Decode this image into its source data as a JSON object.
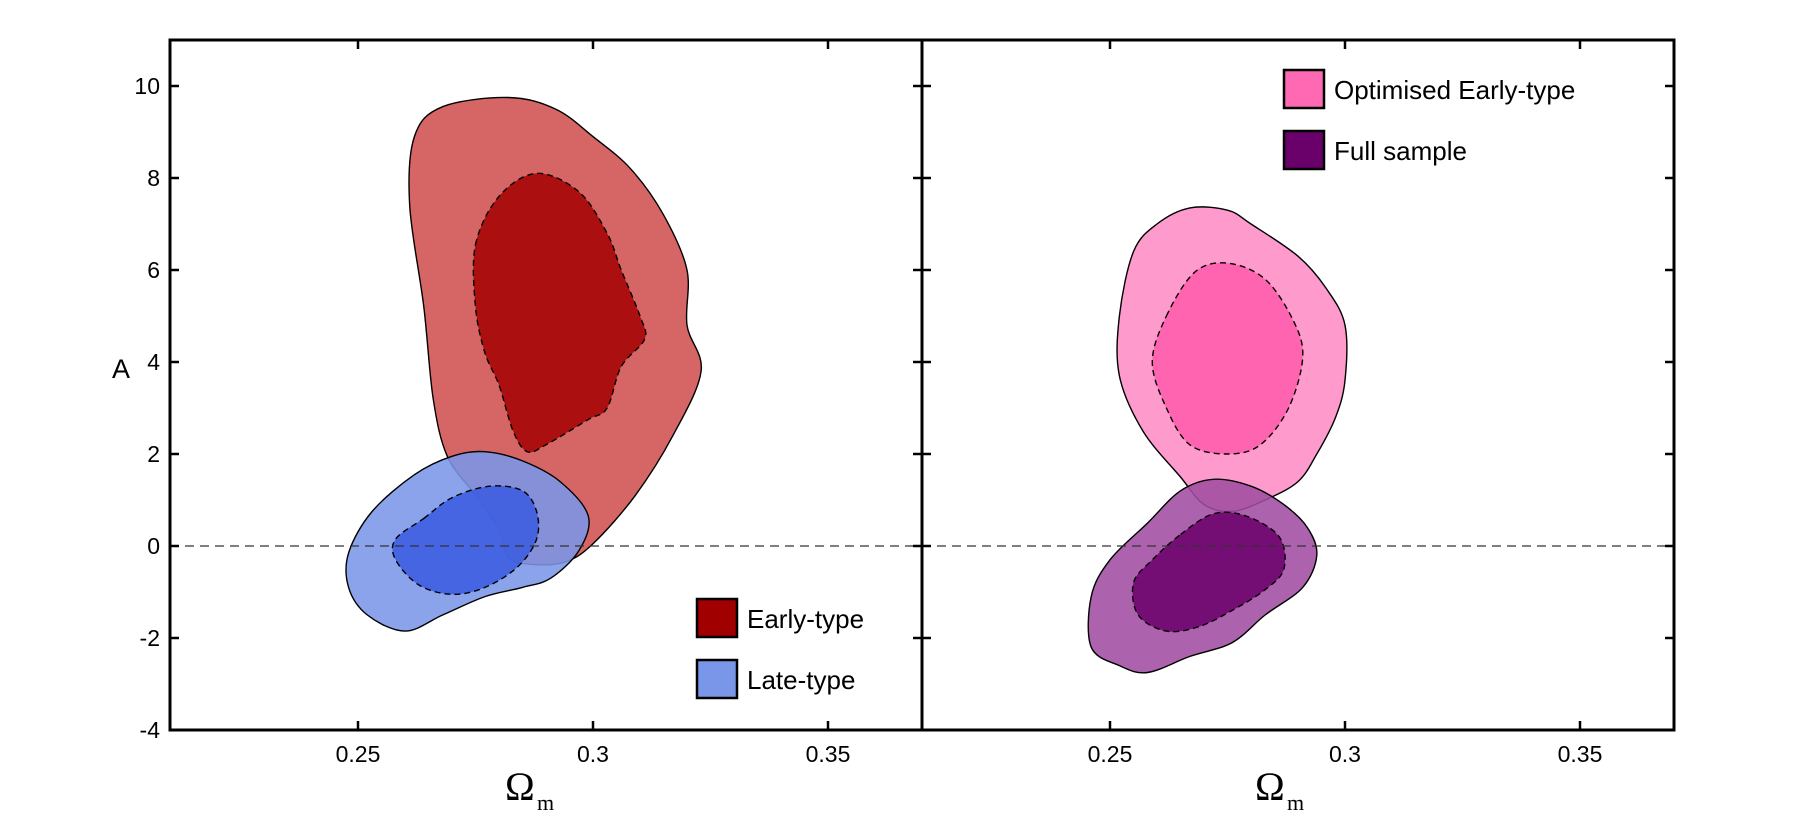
{
  "chart_data": [
    {
      "type": "contour",
      "panel": "left",
      "xlabel": "Ω",
      "xlabel_sub": "m",
      "ylabel": "A",
      "xlim": [
        0.21,
        0.37
      ],
      "ylim": [
        -4,
        11
      ],
      "xticks": [
        0.25,
        0.3,
        0.35
      ],
      "xtick_labels": [
        "0.25",
        "0.3",
        "0.35"
      ],
      "yticks": [
        -4,
        -2,
        0,
        2,
        4,
        6,
        8,
        10
      ],
      "ytick_labels": [
        "-4",
        "-2",
        "0",
        "2",
        "4",
        "6",
        "8",
        "10"
      ],
      "reference_line_y": 0,
      "legend": [
        {
          "label": "Early-type",
          "color": "#a00000"
        },
        {
          "label": "Late-type",
          "color": "#7a96e8"
        }
      ],
      "series": [
        {
          "name": "Early-type",
          "outer_color": "#d05050",
          "inner_color": "#a50000",
          "outer_contour": [
            [
              0.268,
              9.55
            ],
            [
              0.282,
              9.75
            ],
            [
              0.292,
              9.5
            ],
            [
              0.3,
              8.9
            ],
            [
              0.308,
              8.2
            ],
            [
              0.315,
              7.2
            ],
            [
              0.32,
              6.0
            ],
            [
              0.32,
              4.8
            ],
            [
              0.323,
              3.8
            ],
            [
              0.317,
              2.4
            ],
            [
              0.309,
              1.1
            ],
            [
              0.3,
              0.05
            ],
            [
              0.294,
              -0.35
            ],
            [
              0.287,
              -0.4
            ],
            [
              0.282,
              -0.25
            ],
            [
              0.28,
              0.35
            ],
            [
              0.275,
              1.1
            ],
            [
              0.269,
              1.95
            ],
            [
              0.266,
              3.2
            ],
            [
              0.264,
              5.2
            ],
            [
              0.261,
              7.4
            ],
            [
              0.262,
              8.9
            ]
          ],
          "inner_contour": [
            [
              0.275,
              6.55
            ],
            [
              0.28,
              7.6
            ],
            [
              0.288,
              8.1
            ],
            [
              0.297,
              7.7
            ],
            [
              0.303,
              6.8
            ],
            [
              0.306,
              6.0
            ],
            [
              0.31,
              5.0
            ],
            [
              0.311,
              4.5
            ],
            [
              0.306,
              3.9
            ],
            [
              0.303,
              3.0
            ],
            [
              0.299,
              2.75
            ],
            [
              0.29,
              2.2
            ],
            [
              0.286,
              2.05
            ],
            [
              0.283,
              2.5
            ],
            [
              0.28,
              3.5
            ],
            [
              0.277,
              4.2
            ],
            [
              0.275,
              5.2
            ]
          ]
        },
        {
          "name": "Late-type",
          "outer_color": "#7a96e8",
          "inner_color": "#3a5ae0",
          "outer_contour": [
            [
              0.262,
              1.55
            ],
            [
              0.27,
              1.95
            ],
            [
              0.277,
              2.05
            ],
            [
              0.285,
              1.85
            ],
            [
              0.293,
              1.4
            ],
            [
              0.299,
              0.65
            ],
            [
              0.297,
              -0.1
            ],
            [
              0.291,
              -0.7
            ],
            [
              0.285,
              -0.9
            ],
            [
              0.277,
              -1.1
            ],
            [
              0.268,
              -1.5
            ],
            [
              0.26,
              -1.85
            ],
            [
              0.252,
              -1.5
            ],
            [
              0.248,
              -0.9
            ],
            [
              0.248,
              -0.15
            ],
            [
              0.253,
              0.75
            ]
          ],
          "inner_contour": [
            [
              0.264,
              0.6
            ],
            [
              0.27,
              1.05
            ],
            [
              0.278,
              1.3
            ],
            [
              0.285,
              1.2
            ],
            [
              0.288,
              0.75
            ],
            [
              0.288,
              0.15
            ],
            [
              0.284,
              -0.45
            ],
            [
              0.277,
              -0.9
            ],
            [
              0.27,
              -1.05
            ],
            [
              0.263,
              -0.85
            ],
            [
              0.258,
              -0.3
            ],
            [
              0.258,
              0.15
            ]
          ]
        }
      ]
    },
    {
      "type": "contour",
      "panel": "right",
      "xlabel": "Ω",
      "xlabel_sub": "m",
      "xlim": [
        0.21,
        0.37
      ],
      "ylim": [
        -4,
        11
      ],
      "xticks": [
        0.25,
        0.3,
        0.35
      ],
      "xtick_labels": [
        "0.25",
        "0.3",
        "0.35"
      ],
      "reference_line_y": 0,
      "legend": [
        {
          "label": "Optimised Early-type",
          "color": "#ff69b4"
        },
        {
          "label": "Full sample",
          "color": "#6a006a"
        }
      ],
      "series": [
        {
          "name": "Optimised Early-type",
          "outer_color": "#ff8cc6",
          "inner_color": "#ff5aaa",
          "outer_contour": [
            [
              0.255,
              6.4
            ],
            [
              0.26,
              7.0
            ],
            [
              0.267,
              7.35
            ],
            [
              0.275,
              7.3
            ],
            [
              0.28,
              7.0
            ],
            [
              0.29,
              6.3
            ],
            [
              0.296,
              5.6
            ],
            [
              0.3,
              4.8
            ],
            [
              0.3,
              3.6
            ],
            [
              0.298,
              2.8
            ],
            [
              0.294,
              2.0
            ],
            [
              0.29,
              1.4
            ],
            [
              0.283,
              1.0
            ],
            [
              0.276,
              0.75
            ],
            [
              0.27,
              0.9
            ],
            [
              0.265,
              1.5
            ],
            [
              0.257,
              2.5
            ],
            [
              0.252,
              3.7
            ],
            [
              0.252,
              5.0
            ]
          ],
          "inner_contour": [
            [
              0.262,
              5.0
            ],
            [
              0.268,
              5.95
            ],
            [
              0.275,
              6.15
            ],
            [
              0.283,
              5.8
            ],
            [
              0.289,
              4.9
            ],
            [
              0.291,
              4.1
            ],
            [
              0.288,
              3.0
            ],
            [
              0.282,
              2.2
            ],
            [
              0.275,
              2.0
            ],
            [
              0.267,
              2.2
            ],
            [
              0.262,
              3.0
            ],
            [
              0.259,
              4.0
            ]
          ]
        },
        {
          "name": "Full sample",
          "outer_color": "#a04ca0",
          "inner_color": "#6a006a",
          "outer_contour": [
            [
              0.265,
              1.2
            ],
            [
              0.272,
              1.45
            ],
            [
              0.28,
              1.3
            ],
            [
              0.287,
              0.9
            ],
            [
              0.292,
              0.4
            ],
            [
              0.294,
              -0.2
            ],
            [
              0.291,
              -0.9
            ],
            [
              0.283,
              -1.5
            ],
            [
              0.276,
              -2.1
            ],
            [
              0.267,
              -2.4
            ],
            [
              0.258,
              -2.75
            ],
            [
              0.252,
              -2.6
            ],
            [
              0.246,
              -2.2
            ],
            [
              0.246,
              -1.1
            ],
            [
              0.25,
              -0.3
            ],
            [
              0.258,
              0.5
            ]
          ],
          "inner_contour": [
            [
              0.265,
              0.25
            ],
            [
              0.272,
              0.7
            ],
            [
              0.279,
              0.65
            ],
            [
              0.286,
              0.2
            ],
            [
              0.287,
              -0.5
            ],
            [
              0.283,
              -0.95
            ],
            [
              0.276,
              -1.4
            ],
            [
              0.269,
              -1.75
            ],
            [
              0.262,
              -1.85
            ],
            [
              0.256,
              -1.5
            ],
            [
              0.255,
              -0.8
            ],
            [
              0.259,
              -0.3
            ]
          ]
        }
      ]
    }
  ]
}
